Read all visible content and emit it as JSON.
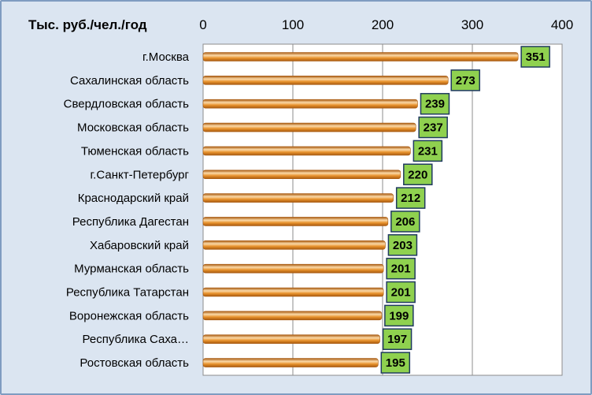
{
  "chart_data": {
    "type": "bar",
    "orientation": "horizontal",
    "title": "Тыс. руб./чел./год",
    "categories": [
      "г.Москва",
      "Сахалинская область",
      "Свердловская область",
      "Московская область",
      "Тюменская область",
      "г.Санкт-Петербург",
      "Краснодарский край",
      "Республика Дагестан",
      "Хабаровский край",
      "Мурманская область",
      "Республика Татарстан",
      "Воронежская область",
      "Республика Саха…",
      "Ростовская область"
    ],
    "values": [
      351,
      273,
      239,
      237,
      231,
      220,
      212,
      206,
      203,
      201,
      201,
      199,
      197,
      195
    ],
    "xlim": [
      0,
      400
    ],
    "ticks": [
      "0",
      "100",
      "200",
      "300",
      "400"
    ],
    "tick_position": "top",
    "grid": true,
    "legend": false,
    "colors": {
      "bar": "#e8922c",
      "bar_light": "#fbd9a8",
      "bar_dark": "#a85a10",
      "label_box": "#8fd14f",
      "label_border": "#1f3a5f",
      "plot_bg": "#ffffff",
      "chart_bg": "#dbe5f1",
      "grid": "#8c8c8c"
    }
  }
}
